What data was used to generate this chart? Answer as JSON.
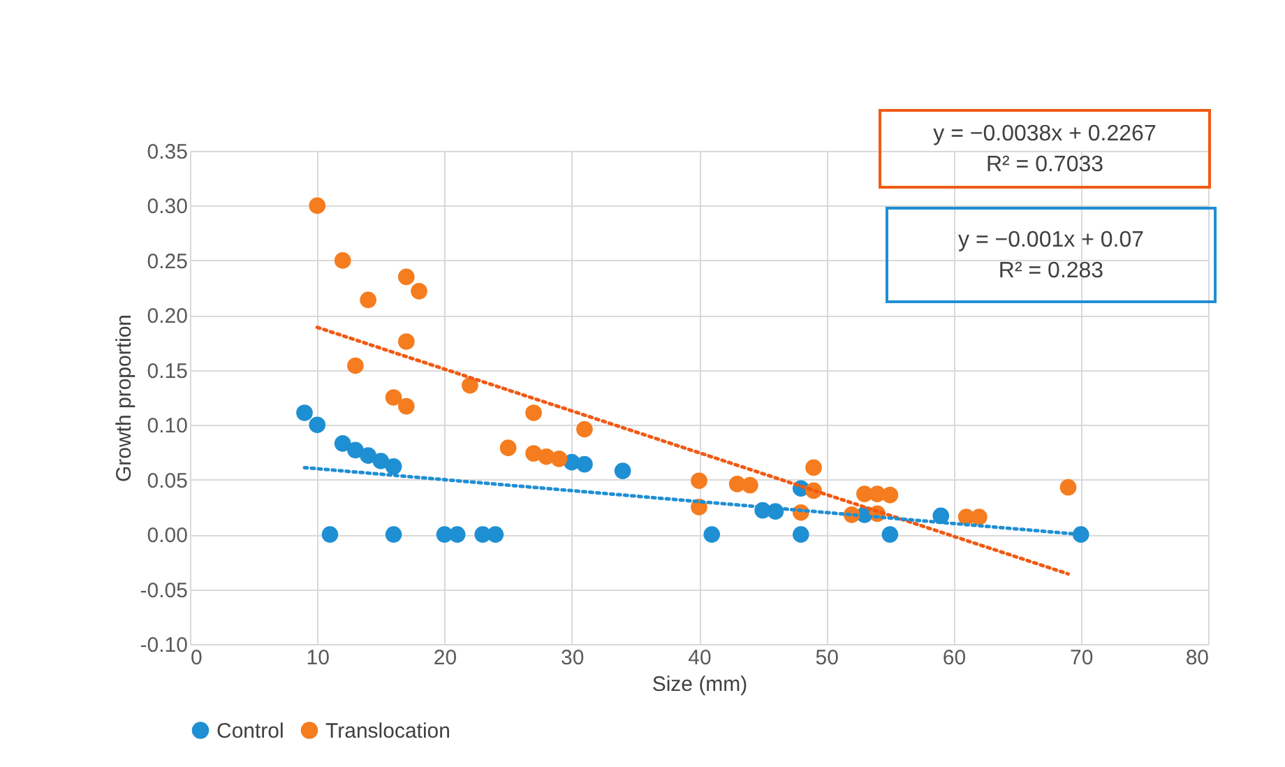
{
  "chart_data": {
    "type": "scatter",
    "xlabel": "Size (mm)",
    "ylabel": "Growth proportion",
    "xlim": [
      0,
      80
    ],
    "xticks": [
      0,
      10,
      20,
      30,
      40,
      50,
      60,
      70,
      80
    ],
    "ylim": [
      -0.1,
      0.35
    ],
    "yticks": [
      {
        "value": -0.1,
        "label": "-0.10"
      },
      {
        "value": -0.05,
        "label": "-0.05"
      },
      {
        "value": 0,
        "label": "0.00"
      },
      {
        "value": 0.05,
        "label": "0.05"
      },
      {
        "value": 0.1,
        "label": "0.10"
      },
      {
        "value": 0.15,
        "label": "0.15"
      },
      {
        "value": 0.2,
        "label": "0.20"
      },
      {
        "value": 0.25,
        "label": "0.25"
      },
      {
        "value": 0.3,
        "label": "0.30"
      },
      {
        "value": 0.35,
        "label": "0.35"
      }
    ],
    "grid": true,
    "legend": "bottom",
    "marker": "circle",
    "series": [
      {
        "name": "Control",
        "color": "#1f8fd3",
        "x": [
          9,
          10,
          12,
          13,
          14,
          15,
          16,
          11,
          16,
          20,
          21,
          23,
          24,
          30,
          31,
          34,
          41,
          45,
          46,
          48,
          48,
          53,
          55,
          59,
          70
        ],
        "values": [
          0.111,
          0.1,
          0.083,
          0.077,
          0.072,
          0.067,
          0.062,
          0,
          0,
          0,
          0,
          0,
          0,
          0.066,
          0.064,
          0.058,
          0,
          0.022,
          0.021,
          0.042,
          0,
          0.018,
          0,
          0.017,
          0
        ]
      },
      {
        "name": "Translocation",
        "color": "#f57c1f",
        "x": [
          10,
          12,
          14,
          17,
          18,
          13,
          17,
          16,
          17,
          22,
          25,
          27,
          28,
          29,
          27,
          31,
          40,
          40,
          43,
          44,
          49,
          49,
          48,
          52,
          53,
          54,
          55,
          54,
          61,
          62,
          69
        ],
        "values": [
          0.3,
          0.25,
          0.214,
          0.235,
          0.222,
          0.154,
          0.176,
          0.125,
          0.117,
          0.136,
          0.079,
          0.074,
          0.071,
          0.069,
          0.111,
          0.096,
          0.049,
          0.025,
          0.046,
          0.045,
          0.061,
          0.04,
          0.02,
          0.018,
          0.037,
          0.037,
          0.036,
          0.019,
          0.016,
          0.016,
          0.043
        ]
      },
      {
        "type": "line",
        "line_style": "dotted",
        "marker": "none",
        "color": "#f05a14",
        "x": [
          10,
          69
        ],
        "values": [
          0.189,
          -0.036
        ]
      },
      {
        "type": "line",
        "line_style": "dotted",
        "marker": "none",
        "color": "#1f8fd3",
        "x": [
          9,
          70
        ],
        "values": [
          0.061,
          0.0
        ]
      }
    ],
    "annotations": [
      "y = −0.0038x + 0.2267\nR² = 0.7033",
      "y = −0.001x + 0.07\nR² = 0.283"
    ]
  }
}
